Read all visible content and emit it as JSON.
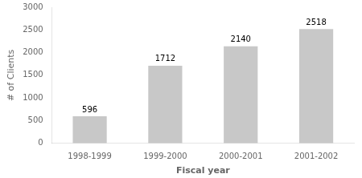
{
  "chart_data": {
    "type": "bar",
    "categories": [
      "1998-1999",
      "1999-2000",
      "2000-2001",
      "2001-2002"
    ],
    "values": [
      596,
      1712,
      2140,
      2518
    ],
    "color": "#c8c8c8",
    "xlabel": "Fiscal year",
    "ylabel": "# of Clients",
    "ylim": [
      0,
      3000
    ],
    "yticks": [
      0,
      500,
      1000,
      1500,
      2000,
      2500,
      3000
    ],
    "grid": false,
    "data_labels": true
  }
}
